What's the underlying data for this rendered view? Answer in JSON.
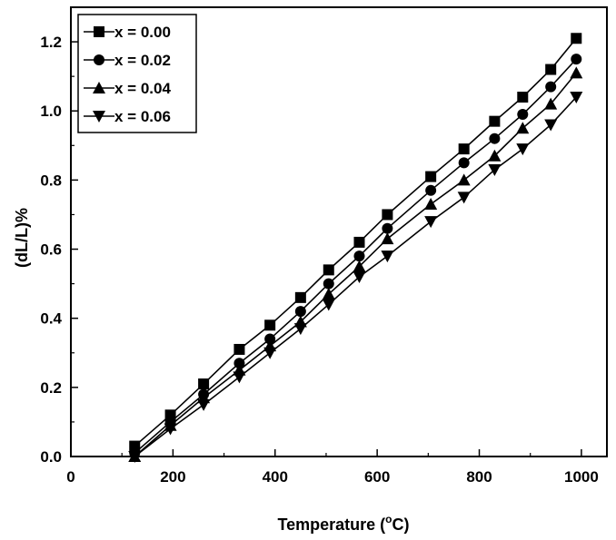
{
  "chart_data": {
    "type": "line",
    "xlabel": "Temperature (",
    "xlabel_sup": "o",
    "xlabel_end": "C)",
    "ylabel": "(dL/L)%",
    "xlim": [
      0,
      1050
    ],
    "ylim": [
      0,
      1.3
    ],
    "x_ticks": [
      "0",
      "200",
      "400",
      "600",
      "800",
      "1000"
    ],
    "y_ticks": [
      "0.0",
      "0.2",
      "0.4",
      "0.6",
      "0.8",
      "1.0",
      "1.2"
    ],
    "x": [
      125,
      195,
      260,
      330,
      390,
      450,
      505,
      565,
      620,
      705,
      770,
      830,
      885,
      940,
      990
    ],
    "legend_position": "top-left",
    "series": [
      {
        "name": "x = 0.00",
        "marker": "square",
        "values": [
          0.03,
          0.12,
          0.21,
          0.31,
          0.38,
          0.46,
          0.54,
          0.62,
          0.7,
          0.81,
          0.89,
          0.97,
          1.04,
          1.12,
          1.21
        ]
      },
      {
        "name": "x = 0.02",
        "marker": "circle",
        "values": [
          0.01,
          0.1,
          0.18,
          0.27,
          0.34,
          0.42,
          0.5,
          0.58,
          0.66,
          0.77,
          0.85,
          0.92,
          0.99,
          1.07,
          1.15
        ]
      },
      {
        "name": "x = 0.04",
        "marker": "triangle-up",
        "values": [
          0.0,
          0.09,
          0.17,
          0.25,
          0.32,
          0.39,
          0.47,
          0.55,
          0.63,
          0.73,
          0.8,
          0.87,
          0.95,
          1.02,
          1.11
        ]
      },
      {
        "name": "x = 0.06",
        "marker": "triangle-down",
        "values": [
          0.0,
          0.08,
          0.15,
          0.23,
          0.3,
          0.37,
          0.44,
          0.52,
          0.58,
          0.68,
          0.75,
          0.83,
          0.89,
          0.96,
          1.04
        ]
      }
    ]
  }
}
